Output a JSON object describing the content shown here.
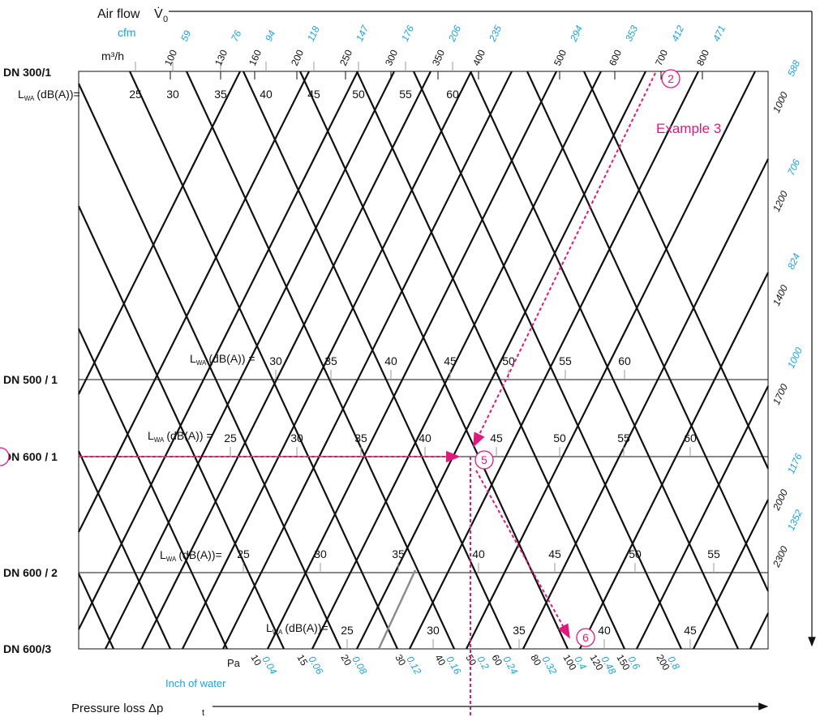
{
  "colors": {
    "black": "#111111",
    "cyan": "#1aa3dc",
    "magenta": "#e0197d",
    "gray": "#8a8a8a"
  },
  "header": {
    "airflow_label": "Air flow",
    "airflow_symbol": "V̇",
    "airflow_subscript": "0",
    "cfm_label": "cfm",
    "m3h_label": "m³/h"
  },
  "top_axis": {
    "m3h": [
      "100",
      "130",
      "160",
      "200",
      "250",
      "300",
      "350",
      "400",
      "500",
      "600",
      "700",
      "800"
    ],
    "cfm": [
      "59",
      "76",
      "94",
      "118",
      "147",
      "176",
      "206",
      "235",
      "294",
      "353",
      "412",
      "471"
    ]
  },
  "right_axis": {
    "m3h": [
      "1000",
      "1200",
      "1400",
      "1700",
      "2000",
      "2300"
    ],
    "cfm": [
      "588",
      "706",
      "824",
      "1000",
      "1176",
      "1352"
    ]
  },
  "bottom_axis": {
    "pa_label": "Pa",
    "inch_label": "Inch of water",
    "pa": [
      "10",
      "15",
      "20",
      "30",
      "40",
      "50",
      "60",
      "80",
      "100",
      "120",
      "150",
      "200"
    ],
    "inch": [
      "0.04",
      "0.06",
      "0.08",
      "0.12",
      "0.16",
      "0.2",
      "0.24",
      "0.32",
      "0.4",
      "0.48",
      "0.6",
      "0.8"
    ],
    "pressure_label": "Pressure loss Δp",
    "pressure_subscript": "t"
  },
  "rows": [
    {
      "label": "DN 300/1",
      "lwa_label": "L",
      "lwa_sub": "WA",
      "lwa_suffix": "(dB(A))=",
      "levels": [
        "25",
        "30",
        "35",
        "40",
        "45",
        "50",
        "55",
        "60"
      ]
    },
    {
      "label": "DN 500 / 1",
      "lwa_label": "L",
      "lwa_sub": "WA",
      "lwa_suffix": "(dB(A)) =",
      "levels": [
        "30",
        "35",
        "40",
        "45",
        "50",
        "55",
        "60"
      ]
    },
    {
      "label": "DN 600 / 1",
      "lwa_label": "L",
      "lwa_sub": "WA",
      "lwa_suffix": "(dB(A)) =",
      "levels": [
        "25",
        "30",
        "35",
        "40",
        "45",
        "50",
        "55",
        "60"
      ]
    },
    {
      "label": "DN 600 / 2",
      "lwa_label": "L",
      "lwa_sub": "WA",
      "lwa_suffix": "(dB(A))=",
      "levels": [
        "25",
        "30",
        "35",
        "40",
        "45",
        "50",
        "55"
      ]
    },
    {
      "label": "DN 600/3",
      "lwa_label": "L",
      "lwa_sub": "WA",
      "lwa_suffix": "(dB(A))=",
      "levels": [
        "25",
        "30",
        "35",
        "40",
        "45"
      ]
    }
  ],
  "annotations": {
    "example": "Example 3",
    "markers": [
      "2",
      "5",
      "6"
    ]
  },
  "chart_data": {
    "type": "nomogram",
    "title": "",
    "xlabel": "Pressure loss Δp",
    "ylabel": "Air flow V̇",
    "airflow_m3h": [
      100,
      130,
      160,
      200,
      250,
      300,
      350,
      400,
      500,
      600,
      700,
      800,
      1000,
      1200,
      1400,
      1700,
      2000,
      2300
    ],
    "airflow_cfm": [
      59,
      76,
      94,
      118,
      147,
      176,
      206,
      235,
      294,
      353,
      412,
      471,
      588,
      706,
      824,
      1000,
      1176,
      1352
    ],
    "pressure_pa": [
      10,
      15,
      20,
      30,
      40,
      50,
      60,
      80,
      100,
      120,
      150,
      200
    ],
    "pressure_inch_of_water": [
      0.04,
      0.06,
      0.08,
      0.12,
      0.16,
      0.2,
      0.24,
      0.32,
      0.4,
      0.48,
      0.6,
      0.8
    ],
    "sizes": [
      "DN 300/1",
      "DN 500 / 1",
      "DN 600 / 1",
      "DN 600 / 2",
      "DN 600/3"
    ],
    "sound_power_levels_dBA": {
      "DN 300/1": [
        25,
        30,
        35,
        40,
        45,
        50,
        55,
        60
      ],
      "DN 500 / 1": [
        30,
        35,
        40,
        45,
        50,
        55,
        60
      ],
      "DN 600 / 1": [
        25,
        30,
        35,
        40,
        45,
        50,
        55,
        60
      ],
      "DN 600 / 2": [
        25,
        30,
        35,
        40,
        45,
        50,
        55
      ],
      "DN 600/3": [
        25,
        30,
        35,
        40,
        45
      ]
    },
    "example_3": {
      "airflow_m3h": 600,
      "size": "DN 600 / 1",
      "pressure_pa": 50,
      "markers": [
        "2",
        "5",
        "6"
      ]
    }
  }
}
